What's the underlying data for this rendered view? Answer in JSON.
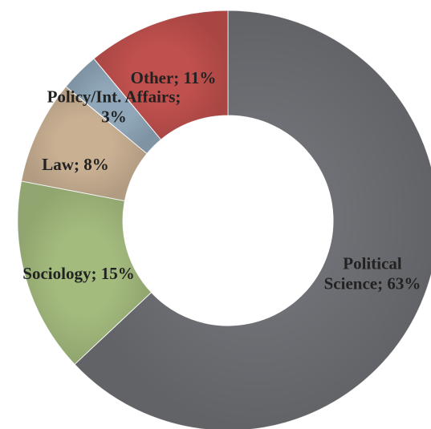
{
  "chart_data": {
    "type": "pie",
    "variant": "donut",
    "title": "",
    "legend": "none",
    "slices": [
      {
        "name": "Political Science",
        "value": 63,
        "label_lines": [
          "Political",
          "Science; 63%"
        ],
        "color": "#6f7075"
      },
      {
        "name": "Sociology",
        "value": 15,
        "label_lines": [
          "Sociology; 15%"
        ],
        "color": "#a4bb7e"
      },
      {
        "name": "Law",
        "value": 8,
        "label_lines": [
          "Law; 8%"
        ],
        "color": "#c9b093"
      },
      {
        "name": "Policy/Int. Affairs",
        "value": 3,
        "label_lines": [
          "Policy/Int. Affairs;",
          "3%"
        ],
        "color": "#8fa7b9"
      },
      {
        "name": "Other",
        "value": 11,
        "label_lines": [
          "Other; 11%"
        ],
        "color": "#c0504d"
      }
    ]
  }
}
